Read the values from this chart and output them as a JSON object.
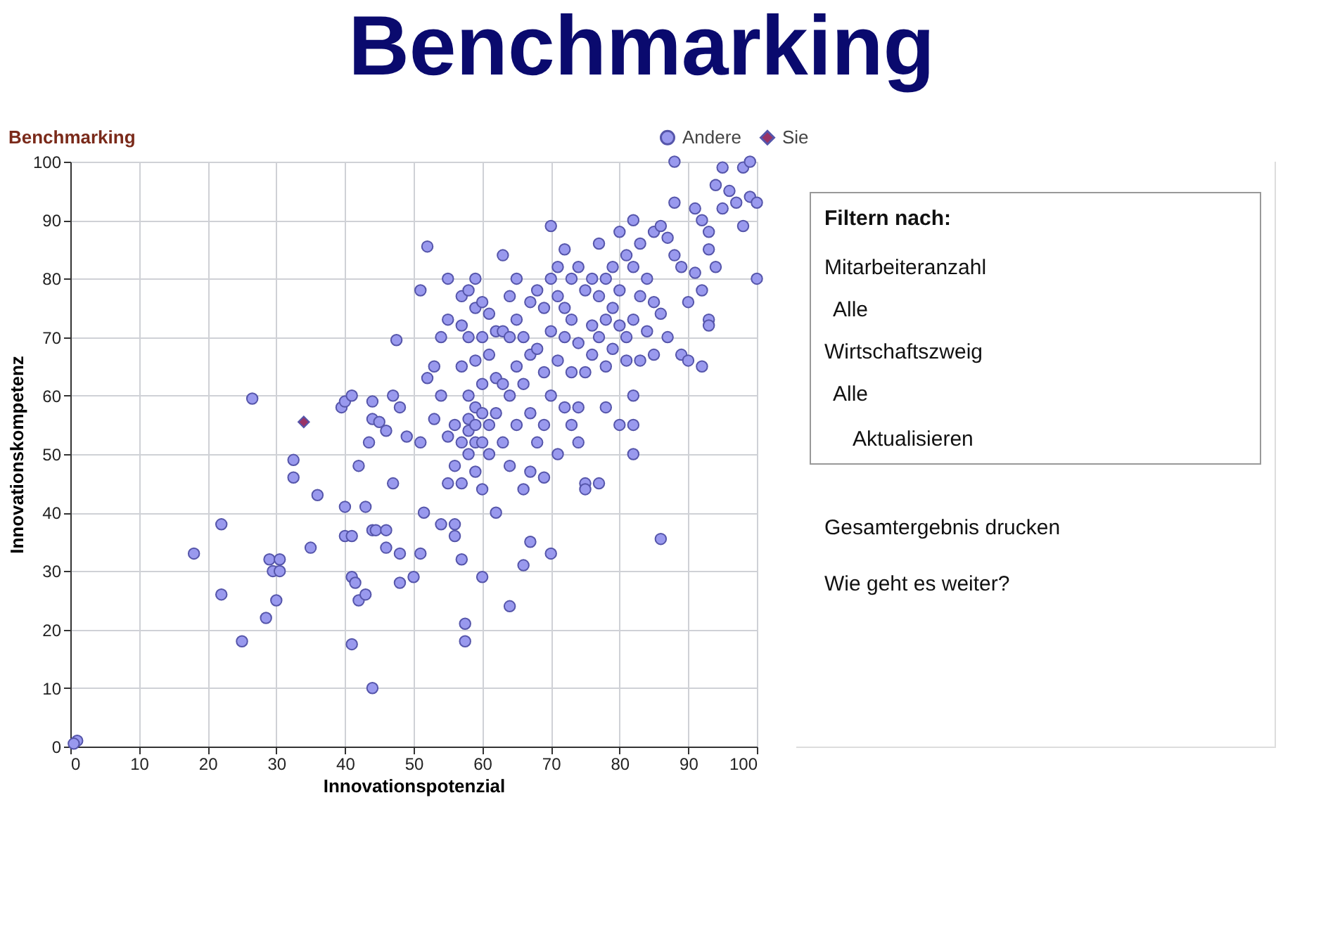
{
  "chart_data": [
    {
      "type": "scatter",
      "title": "Benchmarking",
      "xlabel": "Innovationspotenzial",
      "ylabel": "Innovationskompetenz",
      "xlim": [
        0,
        100
      ],
      "ylim": [
        0,
        100
      ],
      "xticks": [
        0,
        10,
        20,
        30,
        40,
        50,
        60,
        70,
        80,
        90,
        100
      ],
      "yticks": [
        0,
        10,
        20,
        30,
        40,
        50,
        60,
        70,
        80,
        90,
        100
      ],
      "grid": true,
      "legend": "top right",
      "series": [
        {
          "name": "Andere",
          "color": "#9999ee",
          "marker": "circle",
          "x": [
            1,
            0.5,
            18,
            22,
            22,
            25,
            26.5,
            28.5,
            29,
            29.5,
            30,
            30.5,
            30.5,
            32.5,
            32.5,
            35,
            36,
            39.5,
            40,
            41,
            40,
            40,
            41,
            41,
            41.5,
            41,
            42,
            42,
            43,
            43,
            44,
            43.5,
            44,
            44,
            44,
            44.5,
            45,
            46,
            46,
            46,
            47,
            48,
            48,
            47.5,
            47,
            48,
            49,
            50,
            51,
            51,
            51,
            51.5,
            52,
            52,
            53,
            53,
            54,
            54,
            54,
            55,
            55,
            55,
            55,
            56,
            56,
            56,
            56,
            57,
            57,
            57,
            57,
            57,
            57,
            57.5,
            57.5,
            58,
            58,
            58,
            58,
            58,
            58,
            59,
            59,
            59,
            59,
            59,
            59,
            59,
            60,
            60,
            60,
            60,
            60,
            60,
            60,
            61,
            61,
            61,
            61,
            62,
            62,
            62,
            62,
            63,
            63,
            63,
            63,
            64,
            64,
            64,
            64,
            64,
            65,
            65,
            65,
            65,
            66,
            66,
            66,
            66,
            67,
            67,
            67,
            67,
            67,
            68,
            68,
            68,
            69,
            69,
            69,
            69,
            70,
            70,
            70,
            70,
            70,
            71,
            71,
            71,
            71,
            72,
            72,
            72,
            72,
            73,
            73,
            73,
            73,
            74,
            74,
            74,
            74,
            75,
            75,
            75,
            75,
            76,
            76,
            76,
            77,
            77,
            77,
            77,
            78,
            78,
            78,
            78,
            79,
            79,
            79,
            80,
            80,
            80,
            80,
            81,
            81,
            81,
            82,
            82,
            82,
            82,
            82,
            82,
            83,
            83,
            83,
            84,
            84,
            85,
            85,
            85,
            86,
            86,
            86,
            87,
            87,
            88,
            88,
            88,
            89,
            89,
            90,
            90,
            91,
            91,
            92,
            92,
            92,
            93,
            93,
            93,
            93,
            94,
            94,
            95,
            95,
            96,
            97,
            98,
            98,
            99,
            99,
            100,
            100
          ],
          "values": [
            1,
            0.5,
            33,
            38,
            26,
            18,
            59.5,
            22,
            32,
            30,
            25,
            32,
            30,
            49,
            46,
            34,
            43,
            58,
            59,
            60,
            41,
            36,
            36,
            29,
            28,
            17.5,
            25,
            48,
            26,
            41,
            10,
            52,
            56,
            59,
            37,
            37,
            55.5,
            54,
            37,
            34,
            45,
            33,
            28,
            69.5,
            60,
            58,
            53,
            29,
            33,
            78,
            52,
            40,
            85.5,
            63,
            65,
            56,
            70,
            60,
            38,
            80,
            73,
            53,
            45,
            55,
            48,
            38,
            36,
            77,
            72,
            65,
            52,
            45,
            32,
            21,
            18,
            78,
            70,
            60,
            56,
            54,
            50,
            80,
            75,
            66,
            58,
            55,
            52,
            47,
            76,
            70,
            62,
            57,
            52,
            44,
            29,
            74,
            67,
            55,
            50,
            71,
            63,
            57,
            40,
            84,
            71,
            62,
            52,
            77,
            70,
            60,
            48,
            24,
            80,
            73,
            65,
            55,
            70,
            62,
            44,
            31,
            76,
            67,
            57,
            47,
            35,
            78,
            68,
            52,
            75,
            64,
            55,
            46,
            89,
            80,
            71,
            33,
            60,
            82,
            77,
            66,
            50,
            85,
            75,
            70,
            58,
            80,
            73,
            64,
            55,
            82,
            69,
            58,
            52,
            78,
            64,
            45,
            44,
            80,
            72,
            67,
            86,
            77,
            70,
            45,
            80,
            73,
            65,
            58,
            82,
            75,
            68,
            88,
            78,
            72,
            55,
            84,
            70,
            66,
            90,
            82,
            73,
            60,
            55,
            50,
            86,
            77,
            66,
            80,
            71,
            88,
            76,
            67,
            89,
            74,
            35.5,
            87,
            70,
            93,
            84,
            100,
            82,
            67,
            76,
            66,
            92,
            81,
            90,
            65,
            78,
            88,
            73,
            72,
            85,
            96,
            82,
            99,
            92,
            95,
            93,
            99,
            89,
            100,
            94,
            80,
            93
          ]
        },
        {
          "name": "Sie",
          "color": "#993366",
          "marker": "diamond",
          "x": [
            34
          ],
          "values": [
            55.5
          ]
        }
      ]
    },
    {
      "type": "other",
      "title": "Benchmarking",
      "annotations": [
        "Filtern nach:",
        "Mitarbeiteranzahl",
        "Alle",
        "Wirtschaftszweig",
        "Alle",
        "Aktualisieren",
        "Gesamtergebnis drucken",
        "Wie geht es weiter?"
      ]
    }
  ]
}
